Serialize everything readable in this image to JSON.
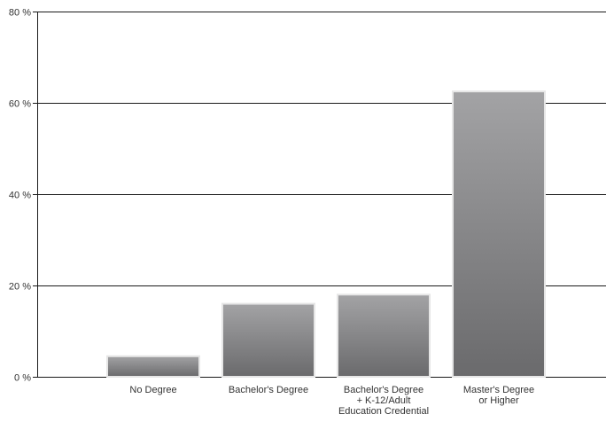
{
  "chart_data": {
    "type": "bar",
    "title": "",
    "xlabel": "",
    "ylabel": "",
    "ylim": [
      0,
      80
    ],
    "yticks": [
      0,
      20,
      40,
      60,
      80
    ],
    "ytick_suffix": " %",
    "grid": true,
    "categories": [
      "No Degree",
      "Bachelor's Degree",
      "Bachelor's Degree + K-12/Adult Education Credential",
      "Master's Degree or Higher"
    ],
    "category_lines": [
      [
        "No Degree"
      ],
      [
        "Bachelor's Degree"
      ],
      [
        "Bachelor's Degree",
        "+ K-12/Adult",
        "Education Credential"
      ],
      [
        "Master's Degree",
        "or Higher"
      ]
    ],
    "values": [
      4.5,
      16,
      18,
      62.5
    ],
    "bar_color": "#8a8a8c",
    "bar_color_light": "#a3a3a5",
    "bar_color_dark": "#6a6a6c",
    "bar_border_color": "#e6e6e6"
  }
}
